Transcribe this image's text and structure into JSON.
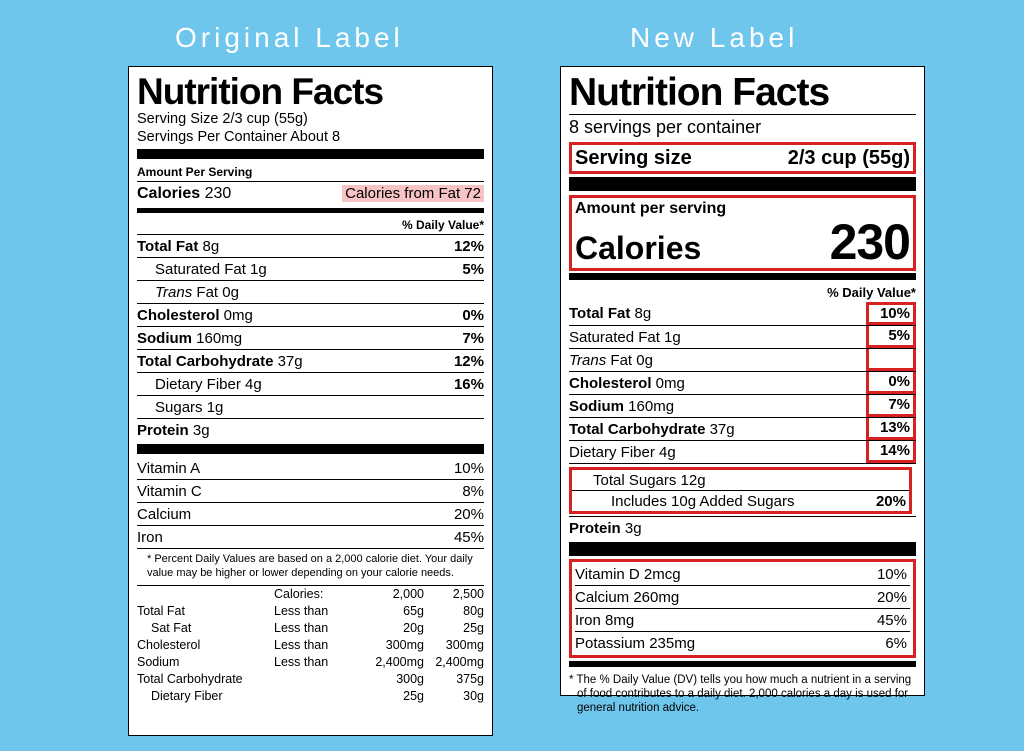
{
  "page": {
    "background_color": "#6ec6ed",
    "highlight_color": "#d62222",
    "headings": {
      "original": "Original Label",
      "new": "New Label"
    }
  },
  "original": {
    "title": "Nutrition Facts",
    "serving_size": "Serving Size 2/3 cup (55g)",
    "servings_per": "Servings Per Container About 8",
    "amount_per_serving": "Amount Per Serving",
    "calories_label": "Calories",
    "calories_value": "230",
    "calories_from_fat": "Calories from Fat 72",
    "dv_header": "% Daily Value*",
    "nutrients": [
      {
        "name": "Total Fat",
        "amt": "8g",
        "dv": "12%",
        "bold": true,
        "indent": 0
      },
      {
        "name": "Saturated Fat",
        "amt": "1g",
        "dv": "5%",
        "bold": false,
        "indent": 1
      },
      {
        "name_html": "<span class='i'>Trans</span> Fat",
        "amt": "0g",
        "dv": "",
        "bold": false,
        "indent": 1
      },
      {
        "name": "Cholesterol",
        "amt": "0mg",
        "dv": "0%",
        "bold": true,
        "indent": 0
      },
      {
        "name": "Sodium",
        "amt": "160mg",
        "dv": "7%",
        "bold": true,
        "indent": 0
      },
      {
        "name": "Total Carbohydrate",
        "amt": "37g",
        "dv": "12%",
        "bold": true,
        "indent": 0
      },
      {
        "name": "Dietary Fiber",
        "amt": "4g",
        "dv": "16%",
        "bold": false,
        "indent": 1
      },
      {
        "name": "Sugars",
        "amt": "1g",
        "dv": "",
        "bold": false,
        "indent": 1
      },
      {
        "name": "Protein",
        "amt": "3g",
        "dv": "",
        "bold": true,
        "indent": 0
      }
    ],
    "vitamins": [
      {
        "name": "Vitamin A",
        "dv": "10%"
      },
      {
        "name": "Vitamin C",
        "dv": "8%"
      },
      {
        "name": "Calcium",
        "dv": "20%"
      },
      {
        "name": "Iron",
        "dv": "45%"
      }
    ],
    "footnote": "* Percent Daily Values are based on a 2,000 calorie diet. Your daily value may be higher or lower depending on your calorie needs.",
    "cal_table": {
      "header": [
        "",
        "Calories:",
        "2,000",
        "2,500"
      ],
      "rows": [
        [
          "Total Fat",
          "Less than",
          "65g",
          "80g"
        ],
        [
          "Sat Fat",
          "Less than",
          "20g",
          "25g"
        ],
        [
          "Cholesterol",
          "Less than",
          "300mg",
          "300mg"
        ],
        [
          "Sodium",
          "Less than",
          "2,400mg",
          "2,400mg"
        ],
        [
          "Total Carbohydrate",
          "",
          "300g",
          "375g"
        ],
        [
          "Dietary Fiber",
          "",
          "25g",
          "30g"
        ]
      ]
    }
  },
  "new": {
    "title": "Nutrition Facts",
    "servings_per": "8 servings per container",
    "serving_size_label": "Serving size",
    "serving_size_value": "2/3 cup (55g)",
    "amount_per_serving": "Amount per serving",
    "calories_label": "Calories",
    "calories_value": "230",
    "dv_header": "% Daily Value*",
    "nutrients": [
      {
        "name": "Total Fat",
        "amt": "8g",
        "dv": "10%",
        "bold": true,
        "indent": 0,
        "box": "top"
      },
      {
        "name": "Saturated Fat",
        "amt": "1g",
        "dv": "5%",
        "bold": false,
        "indent": 1,
        "box": "mid"
      },
      {
        "name_html": "<span class='i'>Trans</span> Fat",
        "amt": "0g",
        "dv": "",
        "bold": false,
        "indent": 1,
        "box": "mid"
      },
      {
        "name": "Cholesterol",
        "amt": "0mg",
        "dv": "0%",
        "bold": true,
        "indent": 0,
        "box": "mid"
      },
      {
        "name": "Sodium",
        "amt": "160mg",
        "dv": "7%",
        "bold": true,
        "indent": 0,
        "box": "mid"
      },
      {
        "name": "Total Carbohydrate",
        "amt": "37g",
        "dv": "13%",
        "bold": true,
        "indent": 0,
        "box": "mid"
      },
      {
        "name": "Dietary Fiber",
        "amt": "4g",
        "dv": "14%",
        "bold": false,
        "indent": 1,
        "box": "bot"
      }
    ],
    "sugars": [
      {
        "text": "Total Sugars 12g",
        "dv": "",
        "indent": 1
      },
      {
        "text": "Includes 10g Added Sugars",
        "dv": "20%",
        "indent": 2
      }
    ],
    "protein": {
      "name": "Protein",
      "amt": "3g"
    },
    "vitamins": [
      {
        "name": "Vitamin D 2mcg",
        "dv": "10%"
      },
      {
        "name": "Calcium 260mg",
        "dv": "20%"
      },
      {
        "name": "Iron 8mg",
        "dv": "45%"
      },
      {
        "name": "Potassium 235mg",
        "dv": "6%"
      }
    ],
    "footnote": "The % Daily Value (DV) tells you how much a nutrient in a serving of food contributes to a daily diet. 2,000 calories a day is used for general nutrition advice."
  }
}
